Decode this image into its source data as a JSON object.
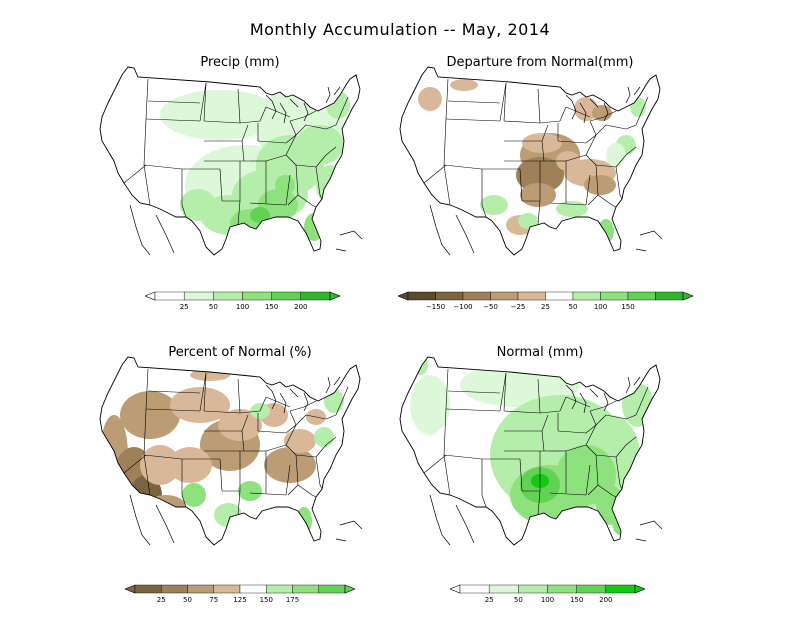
{
  "title": "Monthly Accumulation -- May, 2014",
  "colors": {
    "g1": "#dcf8d8",
    "g2": "#b4eeaa",
    "g3": "#8ee27e",
    "g4": "#62d254",
    "g5": "#34b62c",
    "g6": "#14c814",
    "b1": "#d8b898",
    "b2": "#bc9c74",
    "b3": "#a08058",
    "b4": "#7c6440",
    "b5": "#5a4a30"
  },
  "panels": [
    {
      "id": "precip",
      "title": "Precip (mm)",
      "legend": {
        "tick_labels": [
          "25",
          "50",
          "100",
          "150",
          "200"
        ],
        "bins": [
          "#ffffff",
          "#dcf8d8",
          "#b4eeaa",
          "#8ee27e",
          "#62d254",
          "#34b62c"
        ]
      }
    },
    {
      "id": "departure",
      "title": "Departure from Normal(mm)",
      "legend": {
        "tick_labels": [
          "−150",
          "−100",
          "−50",
          "−25",
          "25",
          "50",
          "100",
          "150"
        ],
        "bins": [
          "#5a4a30",
          "#7c6440",
          "#a08058",
          "#bc9c74",
          "#d8b898",
          "#ffffff",
          "#b4eeaa",
          "#8ee27e",
          "#62d254",
          "#34b62c"
        ]
      }
    },
    {
      "id": "percent",
      "title": "Percent of Normal (%)",
      "legend": {
        "tick_labels": [
          "25",
          "50",
          "75",
          "125",
          "150",
          "175"
        ],
        "bins": [
          "#7c6440",
          "#a08058",
          "#bc9c74",
          "#d8b898",
          "#ffffff",
          "#b4eeaa",
          "#8ee27e",
          "#62d254"
        ]
      }
    },
    {
      "id": "normal",
      "title": "Normal (mm)",
      "legend": {
        "tick_labels": [
          "25",
          "50",
          "100",
          "150",
          "200"
        ],
        "bins": [
          "#ffffff",
          "#dcf8d8",
          "#b4eeaa",
          "#8ee27e",
          "#62d254",
          "#14c814"
        ]
      }
    }
  ]
}
